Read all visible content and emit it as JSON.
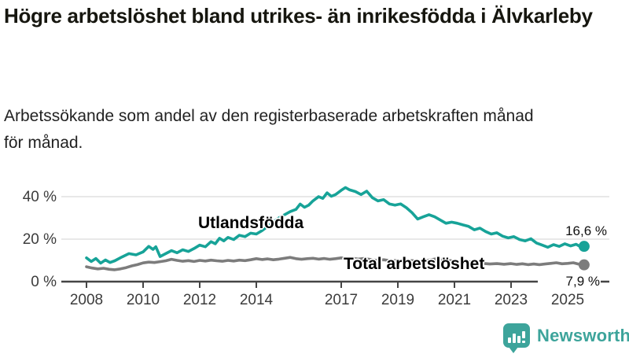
{
  "chart_data": {
    "type": "line",
    "title": "Högre arbetslöshet bland utrikes- än inrikesfödda i Älvkarleby",
    "subtitle": "Arbetssökande som andel av den registerbaserade arbetskraften månad för månad.",
    "grid": "horizontal",
    "legend_position": "inline-labels",
    "xlim": [
      2007.1,
      2026.4
    ],
    "ylim": [
      0,
      46
    ],
    "y_ticks": [
      {
        "value": 0,
        "label": "0 %"
      },
      {
        "value": 20,
        "label": "20 %"
      },
      {
        "value": 40,
        "label": "40 %"
      }
    ],
    "x_ticks": [
      {
        "year": 2008,
        "label": "2008"
      },
      {
        "year": 2010,
        "label": "2010"
      },
      {
        "year": 2012,
        "label": "2012"
      },
      {
        "year": 2014,
        "label": "2014"
      },
      {
        "year": 2017,
        "label": "2017"
      },
      {
        "year": 2019,
        "label": "2019"
      },
      {
        "year": 2021,
        "label": "2021"
      },
      {
        "year": 2023,
        "label": "2023"
      },
      {
        "year": 2025,
        "label": "2025"
      }
    ],
    "series": [
      {
        "name": "Utlandsfödda",
        "color": "#17a398",
        "end_label": "16,6 %",
        "end_value": 16.6,
        "points": [
          [
            2008.0,
            11.2
          ],
          [
            2008.17,
            9.5
          ],
          [
            2008.33,
            10.9
          ],
          [
            2008.5,
            8.7
          ],
          [
            2008.67,
            10.2
          ],
          [
            2008.83,
            9.0
          ],
          [
            2009.0,
            9.8
          ],
          [
            2009.25,
            11.6
          ],
          [
            2009.5,
            13.2
          ],
          [
            2009.75,
            12.6
          ],
          [
            2010.0,
            14.0
          ],
          [
            2010.2,
            16.6
          ],
          [
            2010.35,
            15.2
          ],
          [
            2010.45,
            16.4
          ],
          [
            2010.6,
            11.8
          ],
          [
            2010.8,
            13.2
          ],
          [
            2011.0,
            14.6
          ],
          [
            2011.2,
            13.6
          ],
          [
            2011.4,
            15.0
          ],
          [
            2011.6,
            14.2
          ],
          [
            2011.8,
            15.6
          ],
          [
            2012.0,
            17.2
          ],
          [
            2012.2,
            16.4
          ],
          [
            2012.4,
            18.8
          ],
          [
            2012.55,
            17.8
          ],
          [
            2012.7,
            20.4
          ],
          [
            2012.85,
            19.2
          ],
          [
            2013.0,
            20.8
          ],
          [
            2013.2,
            19.8
          ],
          [
            2013.4,
            21.8
          ],
          [
            2013.6,
            21.2
          ],
          [
            2013.8,
            22.8
          ],
          [
            2014.0,
            22.4
          ],
          [
            2014.2,
            24.0
          ],
          [
            2014.4,
            26.0
          ],
          [
            2014.6,
            28.0
          ],
          [
            2014.8,
            30.0
          ],
          [
            2015.0,
            31.5
          ],
          [
            2015.2,
            33.0
          ],
          [
            2015.4,
            34.0
          ],
          [
            2015.55,
            36.5
          ],
          [
            2015.7,
            35.0
          ],
          [
            2015.85,
            36.0
          ],
          [
            2016.0,
            38.0
          ],
          [
            2016.2,
            40.0
          ],
          [
            2016.35,
            39.2
          ],
          [
            2016.5,
            41.8
          ],
          [
            2016.65,
            40.2
          ],
          [
            2016.8,
            41.0
          ],
          [
            2017.0,
            43.0
          ],
          [
            2017.15,
            44.3
          ],
          [
            2017.3,
            43.2
          ],
          [
            2017.5,
            42.4
          ],
          [
            2017.7,
            41.0
          ],
          [
            2017.9,
            42.6
          ],
          [
            2018.1,
            39.5
          ],
          [
            2018.3,
            38.0
          ],
          [
            2018.5,
            38.6
          ],
          [
            2018.7,
            36.6
          ],
          [
            2018.9,
            36.0
          ],
          [
            2019.1,
            36.6
          ],
          [
            2019.3,
            34.8
          ],
          [
            2019.5,
            32.5
          ],
          [
            2019.7,
            29.5
          ],
          [
            2019.9,
            30.5
          ],
          [
            2020.1,
            31.5
          ],
          [
            2020.3,
            30.5
          ],
          [
            2020.5,
            29.0
          ],
          [
            2020.7,
            27.5
          ],
          [
            2020.9,
            28.0
          ],
          [
            2021.1,
            27.5
          ],
          [
            2021.3,
            26.7
          ],
          [
            2021.5,
            26.0
          ],
          [
            2021.7,
            24.4
          ],
          [
            2021.9,
            25.2
          ],
          [
            2022.1,
            23.6
          ],
          [
            2022.3,
            22.4
          ],
          [
            2022.5,
            23.0
          ],
          [
            2022.7,
            21.4
          ],
          [
            2022.9,
            20.6
          ],
          [
            2023.1,
            21.2
          ],
          [
            2023.3,
            19.8
          ],
          [
            2023.5,
            19.2
          ],
          [
            2023.7,
            20.2
          ],
          [
            2023.9,
            18.2
          ],
          [
            2024.1,
            17.2
          ],
          [
            2024.3,
            16.2
          ],
          [
            2024.5,
            17.4
          ],
          [
            2024.7,
            16.6
          ],
          [
            2024.9,
            17.8
          ],
          [
            2025.1,
            16.8
          ],
          [
            2025.3,
            17.6
          ],
          [
            2025.45,
            16.4
          ],
          [
            2025.58,
            16.6
          ]
        ]
      },
      {
        "name": "Total arbetslöshet",
        "color": "#7c7c7c",
        "end_label": "7,9 %",
        "end_value": 7.9,
        "points": [
          [
            2008.0,
            7.0
          ],
          [
            2008.2,
            6.4
          ],
          [
            2008.4,
            6.0
          ],
          [
            2008.6,
            6.3
          ],
          [
            2008.8,
            5.8
          ],
          [
            2009.0,
            5.6
          ],
          [
            2009.2,
            6.0
          ],
          [
            2009.4,
            6.6
          ],
          [
            2009.6,
            7.4
          ],
          [
            2009.8,
            8.0
          ],
          [
            2010.0,
            8.8
          ],
          [
            2010.2,
            9.2
          ],
          [
            2010.4,
            9.0
          ],
          [
            2010.6,
            9.4
          ],
          [
            2010.8,
            9.8
          ],
          [
            2011.0,
            10.5
          ],
          [
            2011.2,
            10.0
          ],
          [
            2011.4,
            9.6
          ],
          [
            2011.6,
            9.9
          ],
          [
            2011.8,
            9.5
          ],
          [
            2012.0,
            10.0
          ],
          [
            2012.2,
            9.7
          ],
          [
            2012.4,
            10.1
          ],
          [
            2012.6,
            9.8
          ],
          [
            2012.8,
            9.6
          ],
          [
            2013.0,
            10.0
          ],
          [
            2013.2,
            9.7
          ],
          [
            2013.4,
            10.1
          ],
          [
            2013.6,
            9.9
          ],
          [
            2013.8,
            10.3
          ],
          [
            2014.0,
            10.8
          ],
          [
            2014.2,
            10.4
          ],
          [
            2014.4,
            10.7
          ],
          [
            2014.6,
            10.3
          ],
          [
            2014.8,
            10.6
          ],
          [
            2015.0,
            11.0
          ],
          [
            2015.2,
            11.4
          ],
          [
            2015.4,
            10.8
          ],
          [
            2015.6,
            10.5
          ],
          [
            2015.8,
            10.8
          ],
          [
            2016.0,
            11.0
          ],
          [
            2016.2,
            10.6
          ],
          [
            2016.4,
            10.9
          ],
          [
            2016.6,
            10.5
          ],
          [
            2016.8,
            10.8
          ],
          [
            2017.0,
            11.2
          ],
          [
            2017.2,
            10.8
          ],
          [
            2017.4,
            11.0
          ],
          [
            2017.6,
            10.6
          ],
          [
            2017.8,
            10.9
          ],
          [
            2018.0,
            10.5
          ],
          [
            2018.25,
            10.0
          ],
          [
            2018.5,
            10.3
          ],
          [
            2018.75,
            9.8
          ],
          [
            2019.0,
            10.0
          ],
          [
            2019.25,
            9.6
          ],
          [
            2019.5,
            9.9
          ],
          [
            2019.75,
            9.5
          ],
          [
            2020.0,
            9.8
          ],
          [
            2020.2,
            10.4
          ],
          [
            2020.4,
            10.8
          ],
          [
            2020.6,
            10.4
          ],
          [
            2020.8,
            10.0
          ],
          [
            2021.0,
            9.6
          ],
          [
            2021.25,
            9.2
          ],
          [
            2021.5,
            9.4
          ],
          [
            2021.75,
            8.9
          ],
          [
            2022.0,
            8.6
          ],
          [
            2022.25,
            8.3
          ],
          [
            2022.5,
            8.5
          ],
          [
            2022.75,
            8.2
          ],
          [
            2023.0,
            8.5
          ],
          [
            2023.2,
            8.1
          ],
          [
            2023.4,
            8.4
          ],
          [
            2023.6,
            8.0
          ],
          [
            2023.8,
            8.3
          ],
          [
            2024.0,
            8.0
          ],
          [
            2024.2,
            8.3
          ],
          [
            2024.4,
            8.6
          ],
          [
            2024.6,
            8.9
          ],
          [
            2024.8,
            8.4
          ],
          [
            2025.0,
            8.6
          ],
          [
            2025.2,
            8.9
          ],
          [
            2025.4,
            8.2
          ],
          [
            2025.58,
            7.9
          ]
        ]
      }
    ],
    "colors": {
      "grid": "#d9d9d9",
      "axis": "#454545",
      "tick_label": "#3c3c3c",
      "end_label": "#111111"
    }
  },
  "footer": {
    "brand": "Newsworthy",
    "brand_color": "#3da49b"
  }
}
